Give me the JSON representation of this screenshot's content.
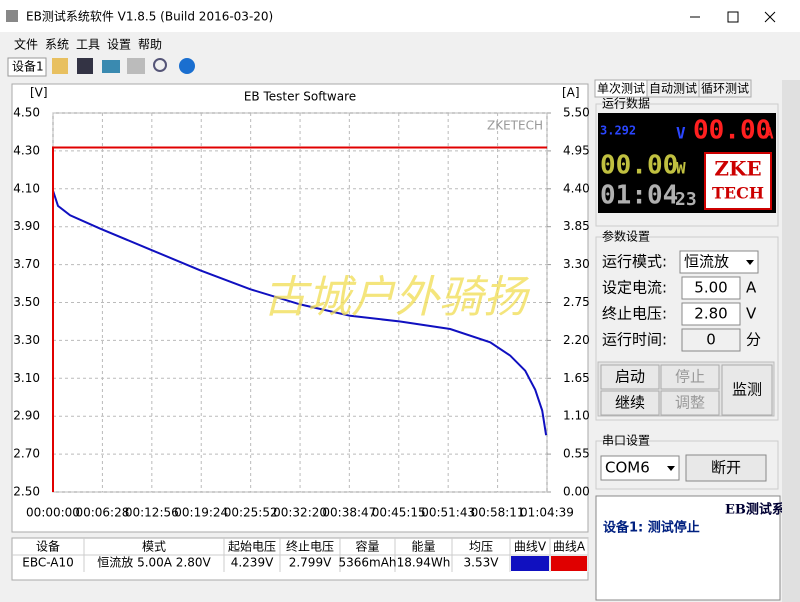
{
  "window": {
    "title": "EB测试系统软件 V1.8.5 (Build 2016-03-20)"
  },
  "menu": [
    "文件",
    "系统",
    "工具",
    "设置",
    "帮助"
  ],
  "toolbar": {
    "device": "设备1"
  },
  "chart_data": {
    "type": "line",
    "title": "EB Tester Software",
    "y_label": "[V]",
    "y2_label": "[A]",
    "watermark": "ZKETECH",
    "annotation": "古城户外骑扬",
    "xlim": [
      0,
      3879
    ],
    "xticks": [
      {
        "value": 0,
        "label": "00:00:00"
      },
      {
        "value": 388,
        "label": "00:06:28"
      },
      {
        "value": 776,
        "label": "00:12:56"
      },
      {
        "value": 1164,
        "label": "00:19:24"
      },
      {
        "value": 1552,
        "label": "00:25:52"
      },
      {
        "value": 1940,
        "label": "00:32:20"
      },
      {
        "value": 2327,
        "label": "00:38:47"
      },
      {
        "value": 2715,
        "label": "00:45:15"
      },
      {
        "value": 3103,
        "label": "00:51:43"
      },
      {
        "value": 3491,
        "label": "00:58:11"
      },
      {
        "value": 3879,
        "label": "01:04:39"
      }
    ],
    "ylim": [
      2.5,
      4.5
    ],
    "yticks": [
      {
        "value": 2.5,
        "label": "2.50"
      },
      {
        "value": 2.7,
        "label": "2.70"
      },
      {
        "value": 2.9,
        "label": "2.90"
      },
      {
        "value": 3.1,
        "label": "3.10"
      },
      {
        "value": 3.3,
        "label": "3.30"
      },
      {
        "value": 3.5,
        "label": "3.50"
      },
      {
        "value": 3.7,
        "label": "3.70"
      },
      {
        "value": 3.9,
        "label": "3.90"
      },
      {
        "value": 4.1,
        "label": "4.10"
      },
      {
        "value": 4.3,
        "label": "4.30"
      },
      {
        "value": 4.5,
        "label": "4.50"
      }
    ],
    "y2lim": [
      0,
      5.5
    ],
    "y2ticks": [
      {
        "value": 0,
        "label": "0.00"
      },
      {
        "value": 0.55,
        "label": "0.55"
      },
      {
        "value": 1.1,
        "label": "1.10"
      },
      {
        "value": 1.65,
        "label": "1.65"
      },
      {
        "value": 2.2,
        "label": "2.20"
      },
      {
        "value": 2.75,
        "label": "2.75"
      },
      {
        "value": 3.3,
        "label": "3.30"
      },
      {
        "value": 3.85,
        "label": "3.85"
      },
      {
        "value": 4.4,
        "label": "4.40"
      },
      {
        "value": 4.95,
        "label": "4.95"
      },
      {
        "value": 5.5,
        "label": "5.50"
      }
    ],
    "grid": true,
    "series": [
      {
        "color": "#1010c0",
        "x": [
          0,
          39,
          134,
          369,
          762,
          1155,
          1548,
          1941,
          2334,
          2726,
          3119,
          3433,
          3590,
          3708,
          3786,
          3841,
          3872
        ],
        "values": [
          4.09,
          4.01,
          3.96,
          3.89,
          3.78,
          3.67,
          3.57,
          3.49,
          3.43,
          3.4,
          3.36,
          3.29,
          3.22,
          3.14,
          3.04,
          2.93,
          2.8
        ]
      },
      {
        "color": "#e00000",
        "axis": "y2",
        "x": [
          0,
          0,
          3879
        ],
        "values": [
          0,
          5.0,
          5.0
        ]
      }
    ]
  },
  "table": {
    "headers": [
      "设备",
      "模式",
      "起始电压",
      "终止电压",
      "容量",
      "能量",
      "均压",
      "曲线V",
      "曲线A"
    ],
    "rows": [
      [
        "EBC-A10",
        "恒流放  5.00A  2.80V",
        "4.239V",
        "2.799V",
        "5366mAh",
        "18.94Wh",
        "3.53V"
      ]
    ]
  },
  "panel": {
    "tabs": [
      "单次测试",
      "自动测试",
      "循环测试"
    ],
    "run_group": "运行数据",
    "voltage": "3.292",
    "voltage_unit": "V",
    "current": "00.00",
    "current_unit": "A",
    "power": "00.00",
    "power_unit": "W",
    "time": "01:04",
    "time_seconds": "23",
    "logo": [
      "ZKE",
      "TECH"
    ],
    "param_group": "参数设置",
    "params": [
      {
        "label": "运行模式:",
        "value": "恒流放"
      },
      {
        "label": "设定电流:",
        "value": "5.00",
        "unit": "A"
      },
      {
        "label": "终止电压:",
        "value": "2.80",
        "unit": "V"
      },
      {
        "label": "运行时间:",
        "value": "0",
        "unit": "分"
      }
    ],
    "buttons": [
      "启动",
      "停止",
      "继续",
      "调整",
      "监测"
    ],
    "serial_group": "串口设置",
    "port": "COM6",
    "disconnect": "断开",
    "status_title": "EB测试系",
    "status": "设备1: 测试停止"
  }
}
